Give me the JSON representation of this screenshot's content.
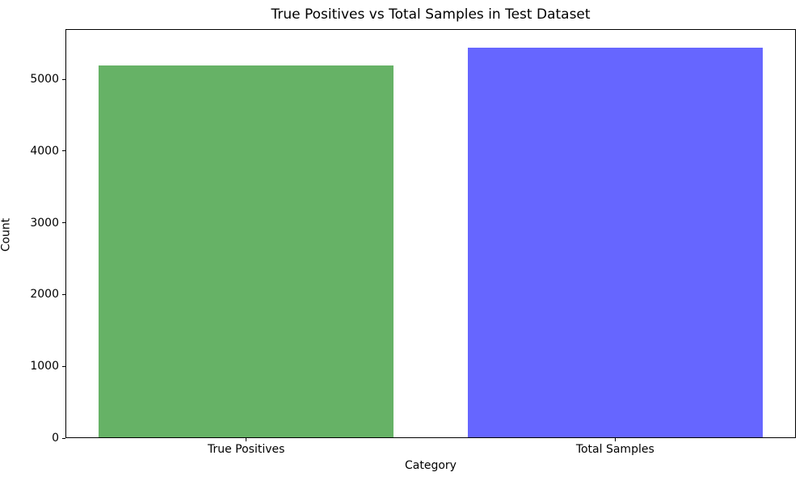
{
  "chart_data": {
    "type": "bar",
    "title": "True Positives vs Total Samples in Test Dataset",
    "xlabel": "Category",
    "ylabel": "Count",
    "categories": [
      "True Positives",
      "Total Samples"
    ],
    "values": [
      5185,
      5425
    ],
    "bar_colors": [
      "#66B266",
      "#6666FF"
    ],
    "ylim": [
      0,
      5700
    ],
    "yticks": [
      0,
      1000,
      2000,
      3000,
      4000,
      5000
    ],
    "xlim": [
      -0.49,
      1.49
    ],
    "bar_width_fraction": 0.8,
    "grid": false,
    "legend_position": "none",
    "background_color": "#ffffff",
    "axis_color": "#000000"
  }
}
